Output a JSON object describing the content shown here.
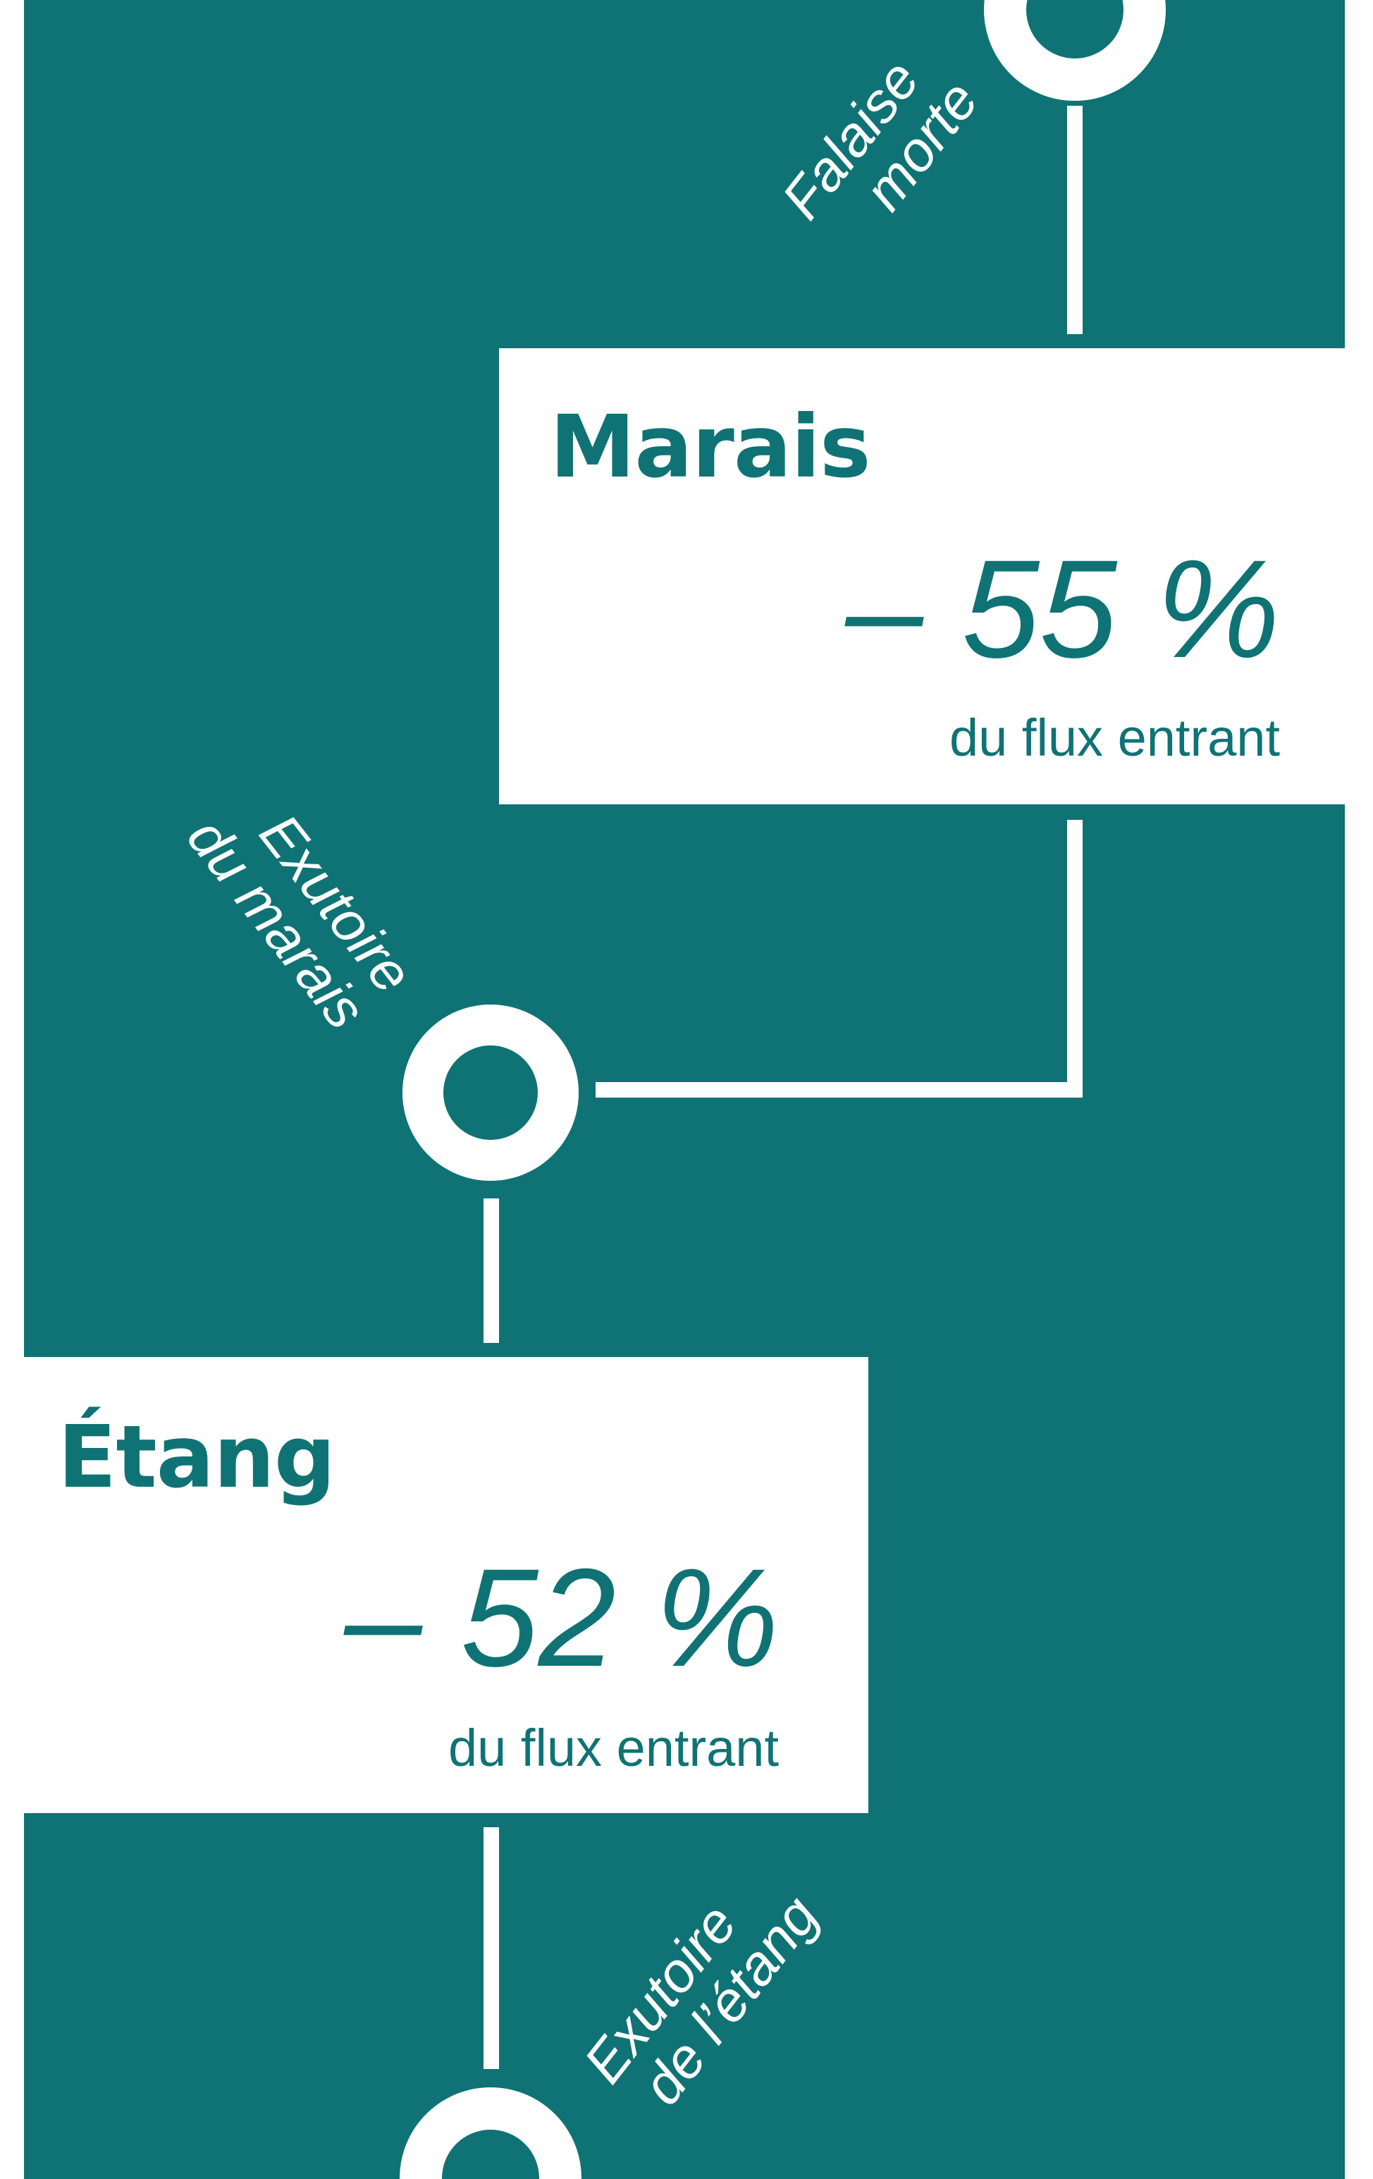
{
  "colors": {
    "teal": "#0f7375",
    "white": "#ffffff"
  },
  "nodes": [
    {
      "id": "falaise",
      "label_line1": "Falaise",
      "label_line2": "morte"
    },
    {
      "id": "exutoire-marais",
      "label_line1": "Exutoire",
      "label_line2": "du marais"
    },
    {
      "id": "exutoire-etang",
      "label_line1": "Exutoire",
      "label_line2": "de l’étang"
    }
  ],
  "boxes": [
    {
      "id": "marais",
      "title": "Marais",
      "value": "– 55 %",
      "subtitle": "du flux entrant"
    },
    {
      "id": "etang",
      "title": "Étang",
      "value": "– 52 %",
      "subtitle": "du flux entrant"
    }
  ]
}
